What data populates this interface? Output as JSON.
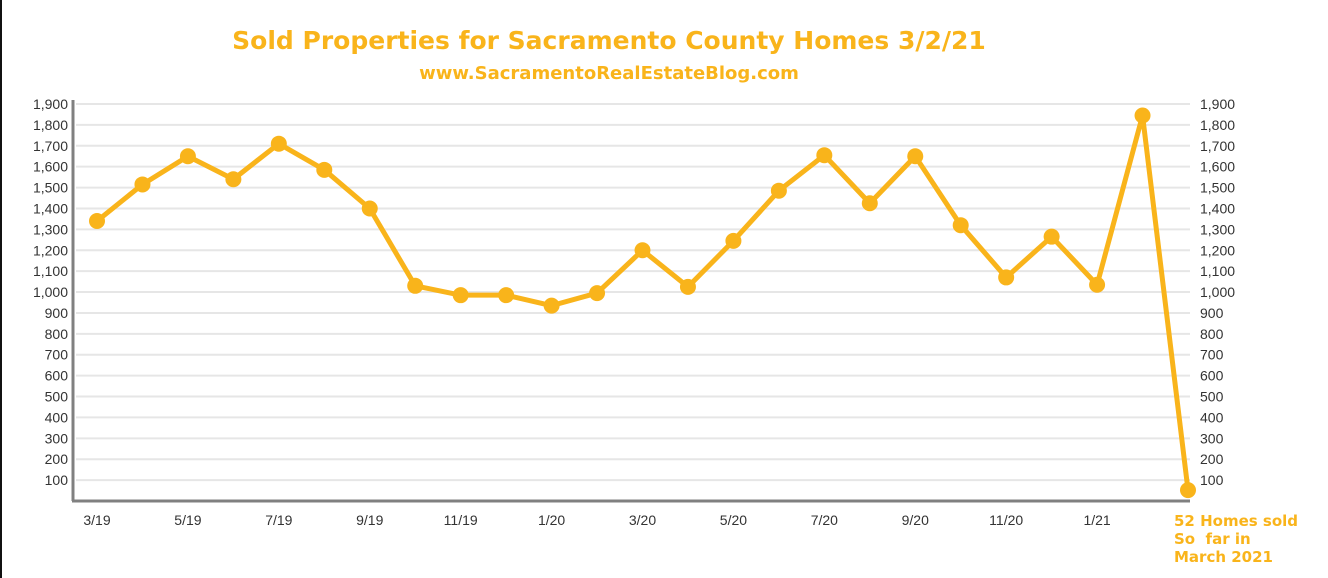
{
  "chart_data": {
    "type": "line",
    "title": "Sold Properties for Sacramento County Homes 3/2/21",
    "subtitle": "www.SacramentoRealEstateBlog.com",
    "x": [
      "3/19",
      "4/19",
      "5/19",
      "6/19",
      "7/19",
      "8/19",
      "9/19",
      "10/19",
      "11/19",
      "12/19",
      "1/20",
      "2/20",
      "3/20",
      "4/20",
      "5/20",
      "6/20",
      "7/20",
      "8/20",
      "9/20",
      "10/20",
      "11/20",
      "12/20",
      "1/21",
      "2/21",
      "3/21"
    ],
    "x_tick_labels": [
      "3/19",
      "5/19",
      "7/19",
      "9/19",
      "11/19",
      "1/20",
      "3/20",
      "5/20",
      "7/20",
      "9/20",
      "11/20",
      "1/21"
    ],
    "series": [
      {
        "values": [
          1340,
          1515,
          1650,
          1540,
          1710,
          1585,
          1400,
          1030,
          985,
          985,
          935,
          995,
          1200,
          1025,
          1245,
          1485,
          1655,
          1425,
          1650,
          1320,
          1070,
          1265,
          1035,
          1845,
          52
        ]
      }
    ],
    "y_tick_labels": [
      "100",
      "200",
      "300",
      "400",
      "500",
      "600",
      "700",
      "800",
      "900",
      "1,000",
      "1,100",
      "1,200",
      "1,300",
      "1,400",
      "1,500",
      "1,600",
      "1,700",
      "1,800",
      "1,900"
    ],
    "ylim": [
      0,
      1900
    ],
    "y_axis_sides": "left and right",
    "grid": true,
    "annotation": "52 Homes sold\nSo  far in\nMarch 2021",
    "colors": {
      "line": "#f9b41b",
      "grid": "#e6e6e6",
      "axis": "#808080",
      "text": "#333333"
    }
  }
}
